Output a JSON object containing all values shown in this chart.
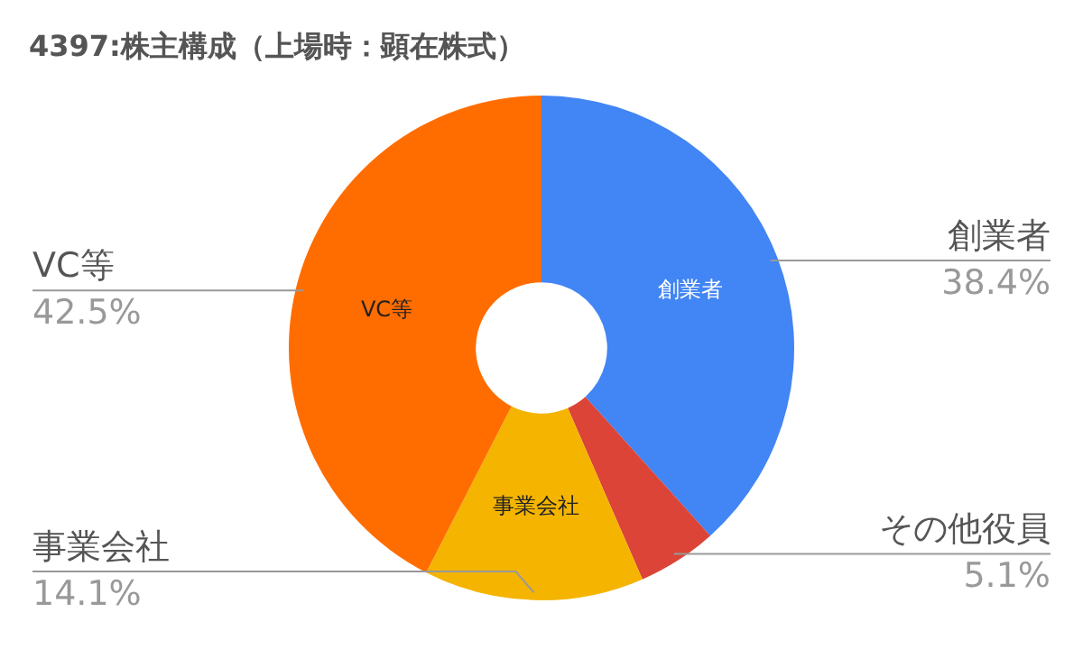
{
  "chart_data": {
    "type": "donut",
    "title": "4397:株主構成（上場時：顕在株式）",
    "categories": [
      "創業者",
      "その他役員",
      "事業会社",
      "VC等"
    ],
    "values": [
      38.4,
      5.1,
      14.1,
      42.5
    ],
    "colors": [
      "#4285f4",
      "#db4437",
      "#f4b400",
      "#ff6d00"
    ],
    "value_labels": [
      "38.4%",
      "5.1%",
      "14.1%",
      "42.5%"
    ],
    "legend": false
  }
}
